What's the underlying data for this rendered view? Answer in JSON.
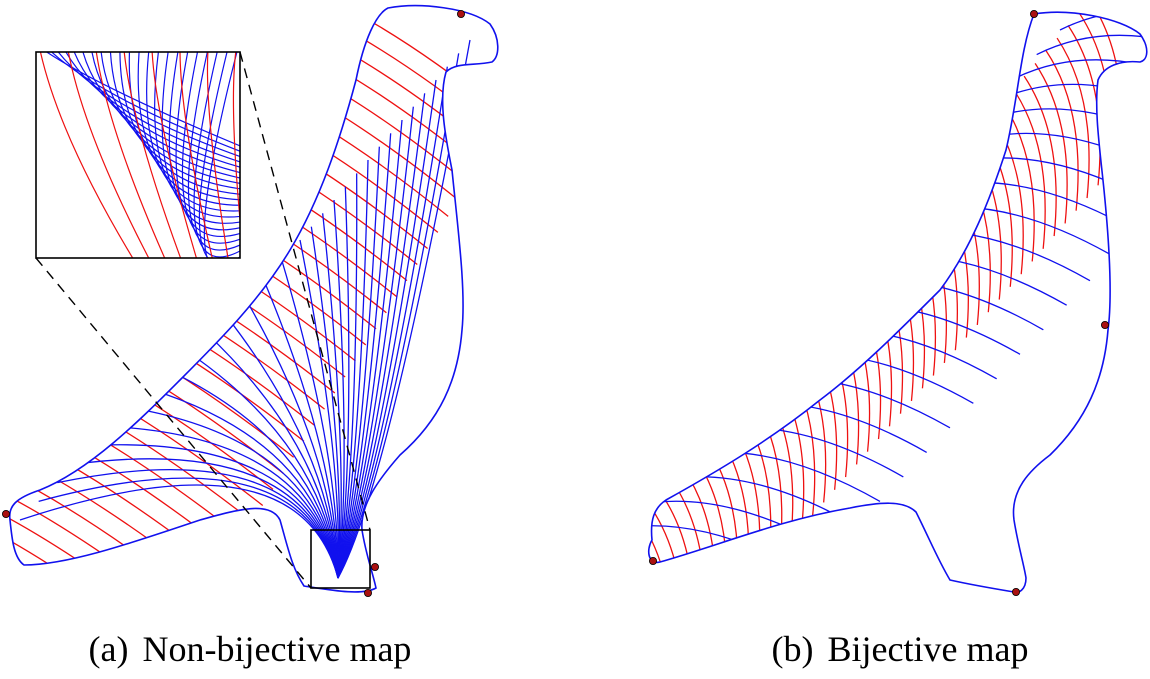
{
  "figure": {
    "colors": {
      "curve_family_1": "#ee1111",
      "curve_family_2": "#1111ee",
      "boundary": "#1111ee",
      "landmark_fill": "#aa1111",
      "inset_frame": "#000000"
    },
    "panels": [
      {
        "id": "a",
        "caption_label": "(a)",
        "caption_text": "Non-bijective map",
        "has_zoom_inset": true,
        "landmark_count": 4
      },
      {
        "id": "b",
        "caption_label": "(b)",
        "caption_text": "Bijective map",
        "has_zoom_inset": false,
        "landmark_count": 4
      }
    ]
  }
}
